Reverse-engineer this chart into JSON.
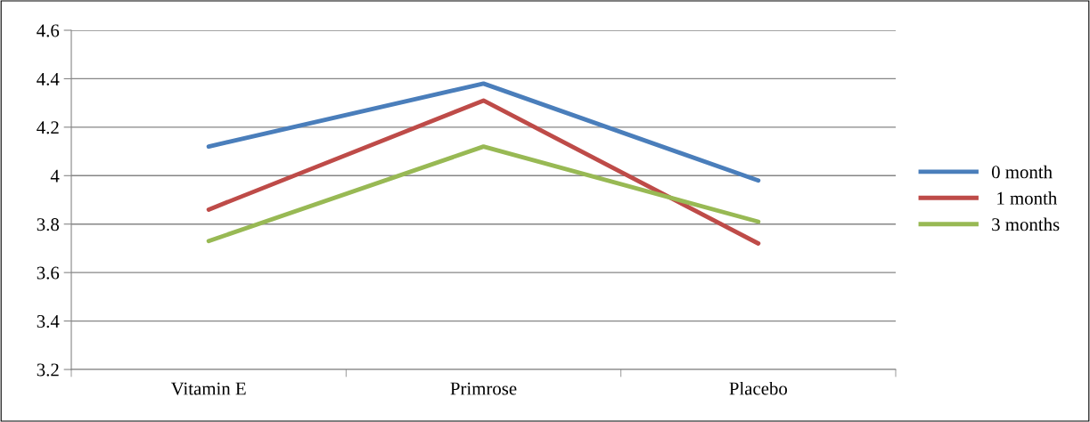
{
  "chart_data": {
    "type": "line",
    "categories": [
      "Vitamin E",
      "Primrose",
      "Placebo"
    ],
    "series": [
      {
        "name": "0 month",
        "color": "#4a7ebb",
        "values": [
          4.12,
          4.38,
          3.98
        ]
      },
      {
        "name": " 1 month",
        "color": "#be4b48",
        "values": [
          3.86,
          4.31,
          3.72
        ]
      },
      {
        "name": "3 months",
        "color": "#98b954",
        "values": [
          3.73,
          4.12,
          3.81
        ]
      }
    ],
    "ylim": [
      3.2,
      4.6
    ],
    "yticks": [
      3.2,
      3.4,
      3.6,
      3.8,
      4,
      4.2,
      4.4,
      4.6
    ],
    "grid": "y",
    "legend": "right",
    "marker": "none",
    "line_style": "solid"
  }
}
